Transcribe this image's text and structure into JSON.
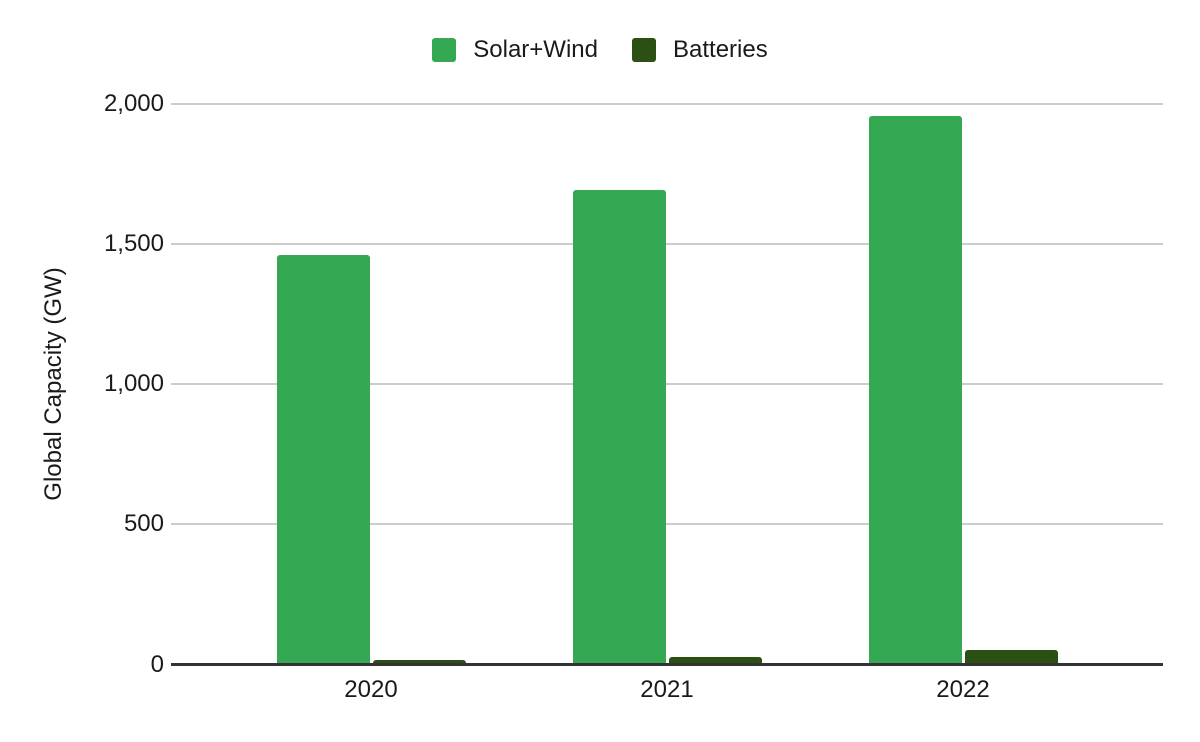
{
  "chart_data": {
    "type": "bar",
    "title": "",
    "categories": [
      "2020",
      "2021",
      "2022"
    ],
    "series": [
      {
        "name": "Solar+Wind",
        "color": "#34a853",
        "values": [
          1460,
          1690,
          1955
        ]
      },
      {
        "name": "Batteries",
        "color": "#2c4f14",
        "values": [
          17,
          25,
          50
        ]
      }
    ],
    "xlabel": "",
    "ylabel": "Global Capacity (GW)",
    "ylim": [
      0,
      2000
    ],
    "yticks": [
      0,
      500,
      1000,
      1500,
      2000
    ],
    "ytick_labels": [
      "0",
      "500",
      "1,000",
      "1,500",
      "2,000"
    ],
    "grid": true,
    "legend_position": "top"
  },
  "colors": {
    "background": "#ffffff",
    "gridline": "#cccccc",
    "axis_line": "#333333",
    "text": "#1a1a1a"
  }
}
